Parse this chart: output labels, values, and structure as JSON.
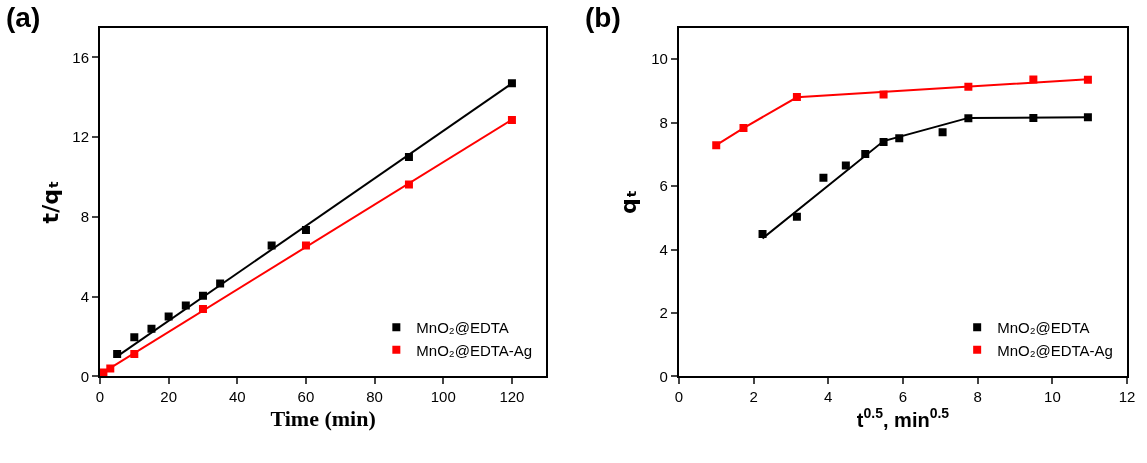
{
  "chart_data": [
    {
      "type": "scatter",
      "xlabel": "Time (min)",
      "ylabel": "t/qₜ",
      "annotations": [
        "(a)"
      ],
      "xlim": [
        0,
        130
      ],
      "ylim": [
        0,
        17.5
      ],
      "xticks": [
        0,
        20,
        40,
        60,
        80,
        100,
        120
      ],
      "yticks": [
        0,
        4,
        8,
        12,
        16
      ],
      "legend": "bottom right",
      "marker": "square",
      "series": [
        {
          "name": "MnO₂@EDTA",
          "color": "#000000",
          "x": [
            5,
            10,
            15,
            20,
            25,
            30,
            35,
            50,
            60,
            90,
            120
          ],
          "values": [
            1.12,
            1.96,
            2.39,
            3.0,
            3.56,
            4.05,
            4.66,
            6.57,
            7.34,
            11.01,
            14.7
          ]
        },
        {
          "name": "MnO₂@EDTA-Ag",
          "color": "#ff0000",
          "x": [
            1,
            3,
            10,
            30,
            60,
            90,
            120
          ],
          "values": [
            0.2,
            0.4,
            1.12,
            3.38,
            6.57,
            9.63,
            12.86
          ]
        },
        {
          "type": "line",
          "color": "#000000",
          "x": [
            5,
            120
          ],
          "values": [
            1.0,
            14.7
          ],
          "line_style": "solid",
          "marker": "none"
        },
        {
          "type": "line",
          "color": "#ff0000",
          "x": [
            0,
            120
          ],
          "values": [
            0.1,
            12.88
          ],
          "line_style": "solid",
          "marker": "none"
        }
      ]
    },
    {
      "type": "scatter",
      "xlabel": "t$^{0.5}$, min$^{0.5}$",
      "ylabel": "qₜ",
      "annotations": [
        "(b)"
      ],
      "xlim": [
        0,
        12
      ],
      "ylim": [
        0,
        11
      ],
      "xticks": [
        0,
        2,
        4,
        6,
        8,
        10,
        12
      ],
      "yticks": [
        0,
        2,
        4,
        6,
        8,
        10
      ],
      "legend": "bottom right",
      "marker": "square",
      "series": [
        {
          "name": "MnO₂@EDTA",
          "color": "#000000",
          "x": [
            2.24,
            3.16,
            3.87,
            4.47,
            4.99,
            5.48,
            5.9,
            7.06,
            7.75,
            9.49,
            10.95
          ],
          "values": [
            4.49,
            5.03,
            6.26,
            6.65,
            7.01,
            7.39,
            7.51,
            7.7,
            8.14,
            8.15,
            8.17
          ]
        },
        {
          "name": "MnO₂@EDTA-Ag",
          "color": "#ff0000",
          "x": [
            1,
            1.73,
            3.16,
            5.48,
            7.75,
            9.49,
            10.95
          ],
          "values": [
            7.29,
            7.83,
            8.81,
            8.89,
            9.13,
            9.36,
            9.35
          ]
        },
        {
          "type": "line",
          "color": "#000000",
          "x": [
            2.24,
            5.48,
            7.75,
            10.95
          ],
          "values": [
            4.35,
            7.42,
            8.15,
            8.17
          ],
          "line_style": "solid",
          "marker": "none"
        },
        {
          "type": "line",
          "color": "#ff0000",
          "x": [
            1,
            1.73,
            3.16,
            10.95
          ],
          "values": [
            7.29,
            7.83,
            8.8,
            9.37
          ],
          "line_style": "solid",
          "marker": "none"
        }
      ]
    }
  ]
}
